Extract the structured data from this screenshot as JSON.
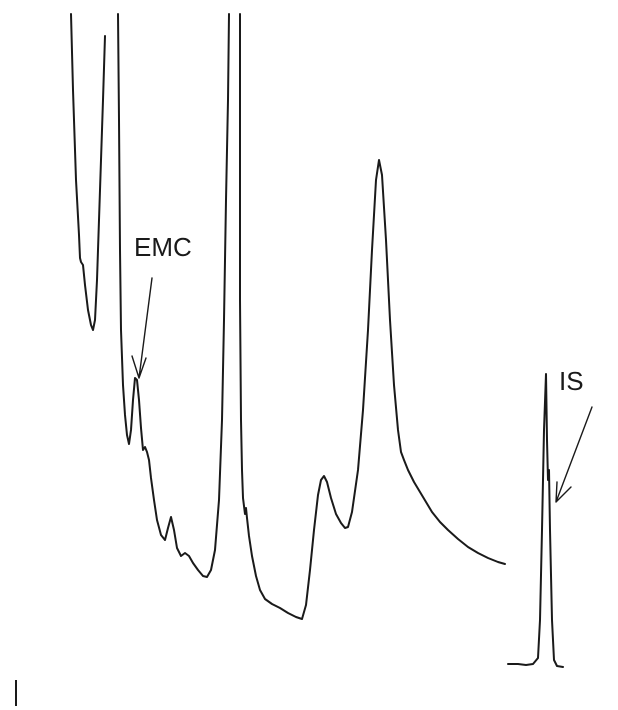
{
  "chart_data": {
    "type": "line",
    "title": "",
    "xlabel": "",
    "ylabel": "",
    "grid": false,
    "legend": "none",
    "series": [
      {
        "values": []
      }
    ],
    "annotations": [
      {
        "id": "emc",
        "text": "EMC"
      },
      {
        "id": "is",
        "text": "IS"
      }
    ]
  },
  "colors": {
    "trace": "#1a1a1a",
    "background": "#ffffff"
  }
}
